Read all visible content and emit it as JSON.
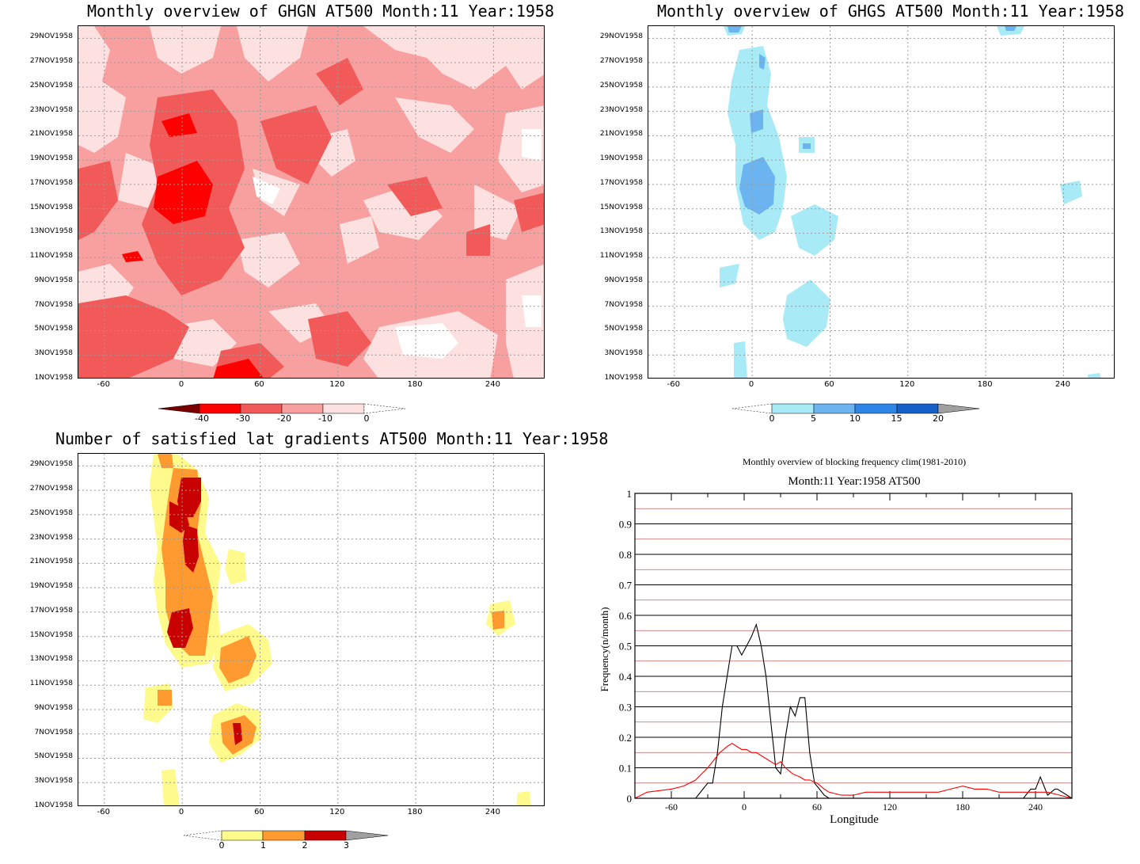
{
  "chart_data": [
    {
      "type": "heatmap",
      "title": "Monthly overview of GHGN AT500 Month:11 Year:1958",
      "x_ticks": [
        "-60",
        "0",
        "60",
        "120",
        "180",
        "240"
      ],
      "y_ticks": [
        "1NOV1958",
        "3NOV1958",
        "5NOV1958",
        "7NOV1958",
        "9NOV1958",
        "11NOV1958",
        "13NOV1958",
        "15NOV1958",
        "17NOV1958",
        "19NOV1958",
        "21NOV1958",
        "23NOV1958",
        "25NOV1958",
        "27NOV1958",
        "29NOV1958"
      ],
      "colorbar": {
        "levels": [
          "-40",
          "-30",
          "-20",
          "-10",
          "0"
        ],
        "colors": [
          "#7a0000",
          "#ff0000",
          "#f25a5a",
          "#f8a0a0",
          "#fde0e0",
          "#ffffff"
        ]
      },
      "grid": true
    },
    {
      "type": "heatmap",
      "title": "Monthly overview of GHGS AT500 Month:11 Year:1958",
      "x_ticks": [
        "-60",
        "0",
        "60",
        "120",
        "180",
        "240"
      ],
      "y_ticks": [
        "1NOV1958",
        "3NOV1958",
        "5NOV1958",
        "7NOV1958",
        "9NOV1958",
        "11NOV1958",
        "13NOV1958",
        "15NOV1958",
        "17NOV1958",
        "19NOV1958",
        "21NOV1958",
        "23NOV1958",
        "25NOV1958",
        "27NOV1958",
        "29NOV1958"
      ],
      "colorbar": {
        "levels": [
          "0",
          "5",
          "10",
          "15",
          "20"
        ],
        "colors": [
          "#ffffff",
          "#a8eaf5",
          "#6cb4f0",
          "#2e86e8",
          "#1560c8",
          "#a0a0a0"
        ]
      },
      "grid": true
    },
    {
      "type": "heatmap",
      "title": "Number of satisfied lat gradients AT500 Month:11 Year:1958",
      "x_ticks": [
        "-60",
        "0",
        "60",
        "120",
        "180",
        "240"
      ],
      "y_ticks": [
        "1NOV1958",
        "3NOV1958",
        "5NOV1958",
        "7NOV1958",
        "9NOV1958",
        "11NOV1958",
        "13NOV1958",
        "15NOV1958",
        "17NOV1958",
        "19NOV1958",
        "21NOV1958",
        "23NOV1958",
        "25NOV1958",
        "27NOV1958",
        "29NOV1958"
      ],
      "colorbar": {
        "levels": [
          "0",
          "1",
          "2",
          "3"
        ],
        "colors": [
          "#ffffff",
          "#fffa8c",
          "#ff9a30",
          "#c80000",
          "#a0a0a0"
        ]
      },
      "grid": true
    },
    {
      "type": "line",
      "title": "Monthly overview of blocking frequency clim(1981-2010)",
      "subtitle": "Month:11 Year:1958  AT500",
      "xlabel": "Longitude",
      "ylabel": "Frequency(n/month)",
      "xlim": [
        -90,
        270
      ],
      "ylim": [
        0,
        1
      ],
      "x_ticks": [
        "-60",
        "0",
        "60",
        "120",
        "180",
        "240"
      ],
      "y_ticks": [
        "0",
        "0.1",
        "0.2",
        "0.3",
        "0.4",
        "0.5",
        "0.6",
        "0.7",
        "0.8",
        "0.9",
        "1"
      ],
      "series": [
        {
          "color": "#000000",
          "x": [
            -90,
            -40,
            -30,
            -26,
            -22,
            -18,
            -14,
            -10,
            -6,
            -2,
            2,
            6,
            10,
            14,
            18,
            22,
            26,
            30,
            34,
            38,
            42,
            46,
            50,
            54,
            58,
            62,
            66,
            70,
            90,
            180,
            230,
            236,
            240,
            244,
            248,
            250,
            256,
            258,
            266,
            270
          ],
          "y": [
            0,
            0,
            0.05,
            0.05,
            0.15,
            0.3,
            0.4,
            0.5,
            0.5,
            0.47,
            0.5,
            0.53,
            0.57,
            0.5,
            0.4,
            0.25,
            0.1,
            0.08,
            0.2,
            0.3,
            0.27,
            0.33,
            0.33,
            0.15,
            0.05,
            0.03,
            0.01,
            0,
            0,
            0,
            0,
            0.03,
            0.03,
            0.07,
            0.03,
            0.01,
            0.03,
            0.03,
            0.01,
            0
          ]
        },
        {
          "color": "#ff0000",
          "x": [
            -90,
            -80,
            -60,
            -50,
            -40,
            -30,
            -20,
            -14,
            -10,
            -6,
            -2,
            2,
            6,
            10,
            14,
            18,
            22,
            26,
            30,
            34,
            40,
            46,
            50,
            54,
            60,
            66,
            70,
            80,
            90,
            100,
            120,
            140,
            160,
            170,
            180,
            190,
            200,
            210,
            220,
            230,
            240,
            250,
            260,
            270
          ],
          "y": [
            0,
            0.02,
            0.03,
            0.04,
            0.06,
            0.1,
            0.15,
            0.17,
            0.18,
            0.17,
            0.16,
            0.16,
            0.15,
            0.15,
            0.14,
            0.13,
            0.12,
            0.11,
            0.12,
            0.1,
            0.08,
            0.07,
            0.06,
            0.06,
            0.05,
            0.03,
            0.02,
            0.01,
            0.01,
            0.02,
            0.02,
            0.02,
            0.02,
            0.03,
            0.04,
            0.03,
            0.03,
            0.02,
            0.02,
            0.02,
            0.02,
            0.02,
            0.01,
            0
          ]
        }
      ]
    }
  ]
}
